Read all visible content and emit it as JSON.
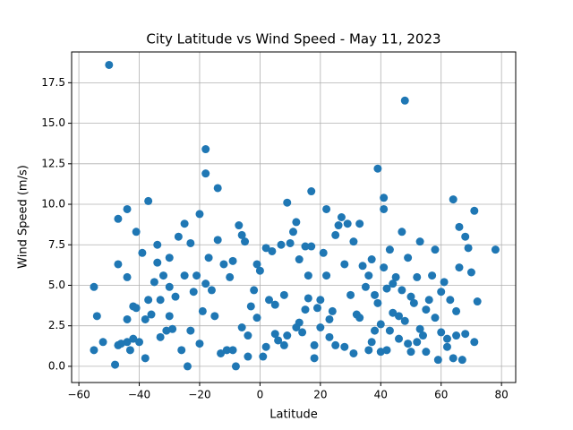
{
  "chart_data": {
    "type": "scatter",
    "title": "City Latitude vs Wind Speed - May 11, 2023",
    "x_label": "Latitude",
    "y_label": "Wind Speed (m/s)",
    "color": "#1f77b4",
    "grid": true,
    "xlim": [
      -62.4,
      84.7
    ],
    "ylim": [
      -1.0,
      19.4
    ],
    "xticks": [
      {
        "value": -60,
        "label": "−60"
      },
      {
        "value": -40,
        "label": "−40"
      },
      {
        "value": -20,
        "label": "−20"
      },
      0,
      20,
      40,
      60,
      80
    ],
    "yticks": [
      {
        "value": 0,
        "label": "0.0"
      },
      {
        "value": 2.5,
        "label": "2.5"
      },
      {
        "value": 5,
        "label": "5.0"
      },
      {
        "value": 7.5,
        "label": "7.5"
      },
      {
        "value": 10,
        "label": "10.0"
      },
      {
        "value": 12.5,
        "label": "12.5"
      },
      {
        "value": 15,
        "label": "15.0"
      },
      {
        "value": 17.5,
        "label": "17.5"
      }
    ],
    "x": [
      -50,
      48,
      -18,
      -18,
      -14,
      39,
      -37,
      -44,
      -47,
      -41,
      17,
      9,
      22,
      41,
      41,
      64,
      71,
      78,
      -55,
      -55,
      -54,
      -52,
      -48,
      -47,
      -47,
      -44,
      -44,
      -44,
      -43,
      -42,
      -42,
      -41,
      -39,
      -38,
      -38,
      -37,
      -36,
      -35,
      -34,
      -34,
      -33,
      -32,
      -31,
      -30,
      -30,
      -29,
      -28,
      -27,
      -25,
      -25,
      -24,
      -23,
      -23,
      -22,
      -21,
      -20,
      -19,
      -17,
      -16,
      -15,
      -14,
      -12,
      -11,
      -10,
      -9,
      -8,
      -7,
      -6,
      -5,
      -4,
      -3,
      -2,
      -1,
      0,
      1,
      2,
      3,
      4,
      5,
      6,
      7,
      8,
      9,
      10,
      11,
      12,
      13,
      14,
      15,
      16,
      17,
      18,
      19,
      20,
      21,
      22,
      23,
      24,
      25,
      26,
      27,
      28,
      29,
      30,
      31,
      32,
      33,
      34,
      35,
      36,
      37,
      38,
      39,
      40,
      41,
      42,
      43,
      44,
      45,
      46,
      47,
      48,
      49,
      50,
      51,
      52,
      53,
      54,
      55,
      56,
      57,
      58,
      59,
      60,
      61,
      62,
      63,
      64,
      65,
      66,
      67,
      68,
      69,
      70,
      71,
      72,
      -46,
      -40,
      -33,
      -26,
      -20,
      -13,
      -9,
      -4,
      2,
      8,
      13,
      18,
      25,
      31,
      37,
      43,
      49,
      55,
      62,
      68,
      -30,
      -18,
      -6,
      5,
      15,
      20,
      33,
      38,
      44,
      50,
      58,
      65,
      16,
      36,
      46,
      53,
      23,
      28,
      12,
      -1,
      40,
      42,
      47,
      52,
      60,
      66
    ],
    "values": [
      18.6,
      16.4,
      13.4,
      11.9,
      11.0,
      12.2,
      10.2,
      9.7,
      9.1,
      8.3,
      10.8,
      10.1,
      9.7,
      10.4,
      9.7,
      10.3,
      9.6,
      7.2,
      1.0,
      4.9,
      3.1,
      1.5,
      0.1,
      1.3,
      6.3,
      1.5,
      2.9,
      5.5,
      1.0,
      1.7,
      3.7,
      3.6,
      7.0,
      0.5,
      2.9,
      4.1,
      3.2,
      5.2,
      6.4,
      7.5,
      4.1,
      5.6,
      2.2,
      6.7,
      3.1,
      2.3,
      4.3,
      8.0,
      8.8,
      5.6,
      0.0,
      7.6,
      2.2,
      4.6,
      5.6,
      9.4,
      3.4,
      6.7,
      4.7,
      3.1,
      7.8,
      6.3,
      1.0,
      5.5,
      6.5,
      0.0,
      8.7,
      8.1,
      7.7,
      1.9,
      3.7,
      4.7,
      6.3,
      5.9,
      0.6,
      7.3,
      4.1,
      7.1,
      3.8,
      1.6,
      7.5,
      4.4,
      1.9,
      7.6,
      8.3,
      8.9,
      6.6,
      2.1,
      7.4,
      5.6,
      7.4,
      1.3,
      3.6,
      2.4,
      7.0,
      5.6,
      1.8,
      3.4,
      8.1,
      8.7,
      9.2,
      6.3,
      8.8,
      4.4,
      7.7,
      3.2,
      8.8,
      6.2,
      4.9,
      1.0,
      6.6,
      2.2,
      3.9,
      0.9,
      6.1,
      4.8,
      7.2,
      3.3,
      5.5,
      1.7,
      8.3,
      2.8,
      6.7,
      0.9,
      3.9,
      5.5,
      7.7,
      1.9,
      3.5,
      4.1,
      5.6,
      7.2,
      0.4,
      2.1,
      5.2,
      1.2,
      4.1,
      0.5,
      1.9,
      8.6,
      0.4,
      8.0,
      7.3,
      5.8,
      1.5,
      4.0,
      1.4,
      1.5,
      1.8,
      1.0,
      1.4,
      0.8,
      1.0,
      0.6,
      1.2,
      1.3,
      2.7,
      0.5,
      1.3,
      0.8,
      1.5,
      2.2,
      1.4,
      0.9,
      1.7,
      2.0,
      4.9,
      5.1,
      2.4,
      2.0,
      3.5,
      4.1,
      3.0,
      4.4,
      5.1,
      4.3,
      3.0,
      3.4,
      4.2,
      5.6,
      3.1,
      2.3,
      2.9,
      1.2,
      2.4,
      3.0,
      2.6,
      1.0,
      4.7,
      1.5,
      4.6,
      6.1
    ]
  }
}
